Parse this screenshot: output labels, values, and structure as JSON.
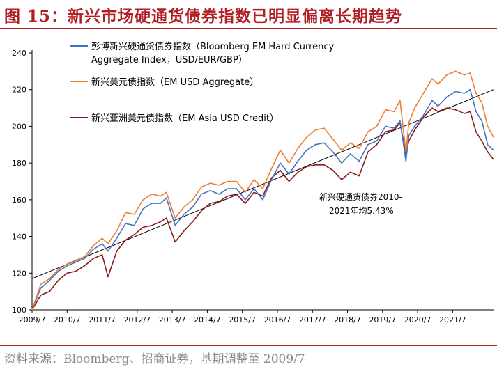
{
  "title": "图 15：新兴市场硬通货债券指数已明显偏离长期趋势",
  "source": "资料来源：Bloomberg、招商证券，基期调整至 2009/7",
  "chart_data": {
    "type": "line",
    "ylim": [
      100,
      240
    ],
    "yticks": [
      "100",
      "120",
      "140",
      "160",
      "180",
      "200",
      "220",
      "240"
    ],
    "x_range": [
      "2009/7",
      "2022/9"
    ],
    "xticks": [
      "2009/7",
      "2010/7",
      "2011/7",
      "2012/7",
      "2013/7",
      "2014/7",
      "2015/7",
      "2016/7",
      "2017/7",
      "2018/7",
      "2019/7",
      "2020/7",
      "2021/7"
    ],
    "grid": false,
    "legend_position": "top-left",
    "series": [
      {
        "name_line1": "彭博新兴硬通货债券指数（Bloomberg EM Hard Currency",
        "name_line2": "Aggregate Index，USD/EUR/GBP）",
        "color": "#4472c4",
        "x": [
          "2009/7",
          "2009/10",
          "2010/1",
          "2010/4",
          "2010/7",
          "2010/10",
          "2011/1",
          "2011/4",
          "2011/7",
          "2011/9",
          "2011/12",
          "2012/3",
          "2012/6",
          "2012/9",
          "2012/12",
          "2013/3",
          "2013/5",
          "2013/8",
          "2013/11",
          "2014/2",
          "2014/5",
          "2014/8",
          "2014/11",
          "2015/2",
          "2015/5",
          "2015/8",
          "2015/11",
          "2016/2",
          "2016/5",
          "2016/8",
          "2016/11",
          "2017/2",
          "2017/5",
          "2017/8",
          "2017/11",
          "2018/2",
          "2018/5",
          "2018/8",
          "2018/11",
          "2019/2",
          "2019/5",
          "2019/8",
          "2019/11",
          "2020/1",
          "2020/3",
          "2020/4",
          "2020/6",
          "2020/9",
          "2020/12",
          "2021/2",
          "2021/5",
          "2021/8",
          "2021/11",
          "2022/1",
          "2022/3",
          "2022/5",
          "2022/7",
          "2022/9"
        ],
        "values": [
          100,
          112,
          116,
          121,
          124,
          126,
          128,
          133,
          136,
          132,
          139,
          147,
          146,
          155,
          158,
          158,
          161,
          146,
          152,
          156,
          163,
          165,
          163,
          166,
          166,
          160,
          166,
          160,
          171,
          180,
          174,
          181,
          187,
          190,
          191,
          186,
          180,
          185,
          181,
          190,
          192,
          200,
          199,
          203,
          181,
          195,
          200,
          206,
          214,
          211,
          216,
          219,
          218,
          220,
          208,
          203,
          190,
          187
        ]
      },
      {
        "name": "新兴美元债指数（EM USD Aggregate）",
        "color": "#ed7d31",
        "x": [
          "2009/7",
          "2009/10",
          "2010/1",
          "2010/4",
          "2010/7",
          "2010/10",
          "2011/1",
          "2011/4",
          "2011/7",
          "2011/9",
          "2011/12",
          "2012/3",
          "2012/6",
          "2012/9",
          "2012/12",
          "2013/3",
          "2013/5",
          "2013/8",
          "2013/11",
          "2014/2",
          "2014/5",
          "2014/8",
          "2014/11",
          "2015/2",
          "2015/5",
          "2015/8",
          "2015/11",
          "2016/2",
          "2016/5",
          "2016/8",
          "2016/11",
          "2017/2",
          "2017/5",
          "2017/8",
          "2017/11",
          "2018/2",
          "2018/5",
          "2018/8",
          "2018/11",
          "2019/2",
          "2019/5",
          "2019/8",
          "2019/11",
          "2020/1",
          "2020/3",
          "2020/4",
          "2020/6",
          "2020/9",
          "2020/12",
          "2021/2",
          "2021/5",
          "2021/8",
          "2021/11",
          "2022/1",
          "2022/3",
          "2022/5",
          "2022/7",
          "2022/9"
        ],
        "values": [
          100,
          114,
          117,
          122,
          125,
          127,
          129,
          135,
          139,
          136,
          143,
          153,
          152,
          160,
          163,
          162,
          164,
          150,
          156,
          160,
          167,
          169,
          168,
          170,
          170,
          164,
          171,
          166,
          177,
          187,
          180,
          188,
          194,
          198,
          199,
          193,
          187,
          191,
          188,
          197,
          200,
          209,
          208,
          214,
          186,
          202,
          210,
          218,
          226,
          223,
          228,
          230,
          228,
          229,
          218,
          213,
          200,
          194
        ]
      },
      {
        "name": "新兴亚洲美元债指数（EM Asia USD Credit）",
        "color": "#8b1a1a",
        "x": [
          "2009/7",
          "2009/10",
          "2010/1",
          "2010/4",
          "2010/7",
          "2010/10",
          "2011/1",
          "2011/4",
          "2011/7",
          "2011/9",
          "2011/12",
          "2012/3",
          "2012/6",
          "2012/9",
          "2012/12",
          "2013/3",
          "2013/5",
          "2013/8",
          "2013/11",
          "2014/2",
          "2014/5",
          "2014/8",
          "2014/11",
          "2015/2",
          "2015/5",
          "2015/8",
          "2015/11",
          "2016/2",
          "2016/5",
          "2016/8",
          "2016/11",
          "2017/2",
          "2017/5",
          "2017/8",
          "2017/11",
          "2018/2",
          "2018/5",
          "2018/8",
          "2018/11",
          "2019/2",
          "2019/5",
          "2019/8",
          "2019/11",
          "2020/1",
          "2020/3",
          "2020/4",
          "2020/6",
          "2020/9",
          "2020/12",
          "2021/2",
          "2021/5",
          "2021/8",
          "2021/11",
          "2022/1",
          "2022/3",
          "2022/5",
          "2022/7",
          "2022/9"
        ],
        "values": [
          100,
          108,
          110,
          116,
          120,
          121,
          124,
          128,
          130,
          118,
          132,
          138,
          141,
          145,
          146,
          148,
          150,
          137,
          143,
          148,
          154,
          158,
          159,
          162,
          163,
          158,
          164,
          162,
          172,
          176,
          170,
          175,
          178,
          179,
          179,
          176,
          171,
          175,
          173,
          186,
          190,
          197,
          198,
          202,
          185,
          192,
          198,
          205,
          210,
          208,
          210,
          209,
          207,
          208,
          197,
          192,
          186,
          182
        ]
      }
    ],
    "trendline": {
      "x": [
        "2009/7",
        "2022/9"
      ],
      "values": [
        117,
        220
      ],
      "color": "#000000"
    },
    "annotation_line1": "新兴硬通货债券2010-",
    "annotation_line2": "2021年均5.43%"
  }
}
